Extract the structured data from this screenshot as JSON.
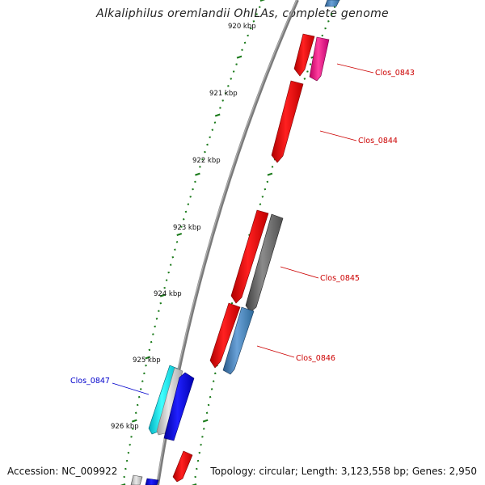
{
  "title": "Alkaliphilus oremlandii OhILAs, complete genome",
  "footer": {
    "accession": "Accession: NC_009922",
    "summary": "Topology: circular; Length: 3,123,558 bp; Genes: 2,950"
  },
  "scale_labels": [
    "920 kbp",
    "921 kbp",
    "922 kbp",
    "923 kbp",
    "924 kbp",
    "925 kbp",
    "926 kbp"
  ],
  "genes": [
    {
      "id": "Clos_0843",
      "strand": "+",
      "color": "#cc0000",
      "label_color": "#cc0000"
    },
    {
      "id": "Clos_0844",
      "strand": "+",
      "color": "#cc0000",
      "label_color": "#cc0000"
    },
    {
      "id": "Clos_0845",
      "strand": "+",
      "color": "#cc0000",
      "label_color": "#cc0000"
    },
    {
      "id": "Clos_0846",
      "strand": "+",
      "color": "#cc0000",
      "label_color": "#cc0000"
    },
    {
      "id": "Clos_0847",
      "strand": "-",
      "color": "#0000cc",
      "label_color": "#0000cc"
    }
  ],
  "colors": {
    "backbone": "#808080",
    "ticks": "#1a7a1a",
    "cds_forward": "#ee0000",
    "cds_reverse": "#0000ee",
    "rna": "#ff1493",
    "other": "#666666",
    "steelblue": "#4682b4",
    "cyan": "#00e5ee"
  }
}
